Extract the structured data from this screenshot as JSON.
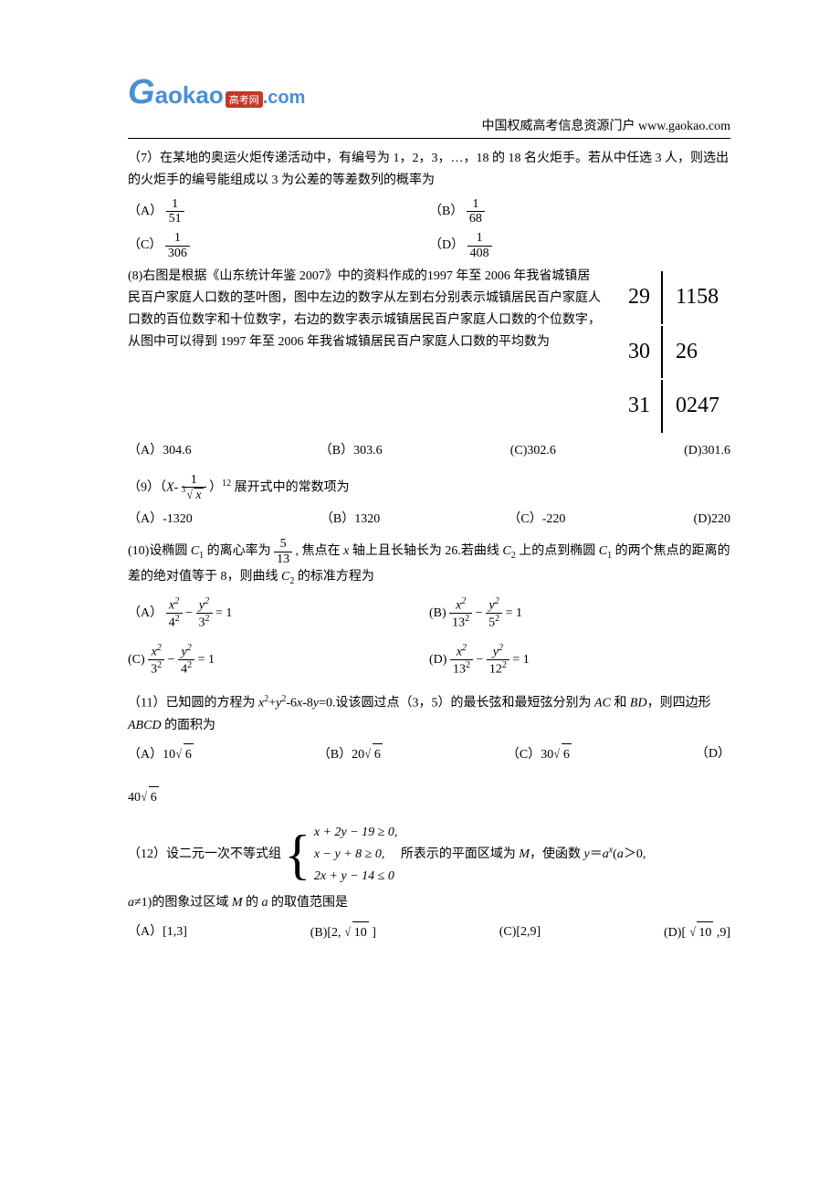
{
  "header": {
    "logo_g": "G",
    "logo_text": "aokao",
    "logo_badge": "高考网",
    "logo_dot": ".com",
    "right_text": "中国权威高考信息资源门户   www.gaokao.com"
  },
  "q7": {
    "text": "（7）在某地的奥运火炬传递活动中，有编号为 1，2，3，…，18 的 18 名火炬手。若从中任选 3 人，则选出的火炬手的编号能组成以 3 为公差的等差数列的概率为",
    "optA_label": "（A）",
    "optA_num": "1",
    "optA_den": "51",
    "optB_label": "（B）",
    "optB_num": "1",
    "optB_den": "68",
    "optC_label": "（C）",
    "optC_num": "1",
    "optC_den": "306",
    "optD_label": "（D）",
    "optD_num": "1",
    "optD_den": "408"
  },
  "q8": {
    "text1": "(8)右图是根据《山东统计年鉴 2007》中的资料作成的1997 年至 2006 年我省城镇居民百户家庭人口数的茎叶图，图中左边的数字从左到右分别表示城镇居民百户家庭人口数的百位数字和十位数字，右边的数字表示城镇居民百户家庭人口数的个位数字，从图中可以得到 1997 年至 2006 年我省城镇居民百户家庭人口数的平均数为",
    "stem1": "29",
    "leaf1": "1158",
    "stem2": "30",
    "leaf2": "26",
    "stem3": "31",
    "leaf3": "0247",
    "optA": "（A）304.6",
    "optB": "（B）303.6",
    "optC": "(C)302.6",
    "optD": "(D)301.6"
  },
  "q9": {
    "prefix": "（9）（",
    "var": "X",
    "minus": "-",
    "num": "1",
    "root_idx": "3",
    "root_arg": "x",
    "exp": "12",
    "suffix": "展开式中的常数项为",
    "optA": "（A）-1320",
    "optB": "（B）1320",
    "optC": "（C）-220",
    "optD": "(D)220"
  },
  "q10": {
    "prefix": "(10)设椭圆 ",
    "c1": "C",
    "sub1": "1",
    "mid1": " 的离心率为 ",
    "e_num": "5",
    "e_den": "13",
    "mid2": " , 焦点在 ",
    "xvar": "x",
    "mid3": " 轴上且长轴长为 26.若曲线 ",
    "c2": "C",
    "sub2": "2",
    "mid4": " 上的点到椭圆 ",
    "c1b": "C",
    "sub1b": "1",
    "mid5": " 的两个焦点的距离的差的绝对值等于 8，则曲线 ",
    "c2b": "C",
    "sub2b": "2",
    "suffix": " 的标准方程为",
    "A_label": "（A）",
    "A_a": "4",
    "A_b": "3",
    "B_label": "(B)",
    "B_a": "13",
    "B_b": "5",
    "C_label": "(C)",
    "C_a": "3",
    "C_b": "4",
    "D_label": "(D)",
    "D_a": "13",
    "D_b": "12"
  },
  "q11": {
    "prefix": "（11）已知圆的方程为 ",
    "eq_part1": "x",
    "eq_part2": "+",
    "eq_part3": "y",
    "eq_part4": "-6",
    "eq_part5": "x",
    "eq_part6": "-8",
    "eq_part7": "y",
    "eq_part8": "=0.设该圆过点（3，5）的最长弦和最短弦分别为 ",
    "ac": "AC",
    "and": " 和 ",
    "bd": "BD",
    "mid": "，则四边形 ",
    "abcd": "ABCD",
    "suffix": " 的面积为",
    "A_label": "（A）",
    "A_coef": "10",
    "A_rad": "6",
    "B_label": "（B）",
    "B_coef": "20",
    "B_rad": "6",
    "C_label": "（C）",
    "C_coef": "30",
    "C_rad": "6",
    "D_label": "（D）",
    "D_coef": "40",
    "D_rad": "6"
  },
  "q12": {
    "prefix": "（12）设二元一次不等式组",
    "line1": "x + 2y − 19 ≥ 0,",
    "line2": "x − y + 8 ≥ 0,",
    "line3": "2x + y − 14 ≤ 0",
    "mid1": "  所表示的平面区域为 ",
    "M": "M",
    "mid2": "，使函数 ",
    "yvar": "y",
    "eq": "＝",
    "avar": "a",
    "xexp": "x",
    "mid3": "(",
    "a2": "a",
    "gt": "＞0,",
    "line4_a": "a",
    "line4": "≠1)的图象过区域 ",
    "M2": "M",
    "line4b": " 的 ",
    "a3": "a",
    "line4c": " 的取值范围是",
    "optA": "（A）[1,3]",
    "optB_pre": "(B)[2, ",
    "optB_rad": "10",
    "optB_post": " ]",
    "optC": "(C)[2,9]",
    "optD_pre": "(D)[ ",
    "optD_rad": "10",
    "optD_post": " ,9]"
  }
}
